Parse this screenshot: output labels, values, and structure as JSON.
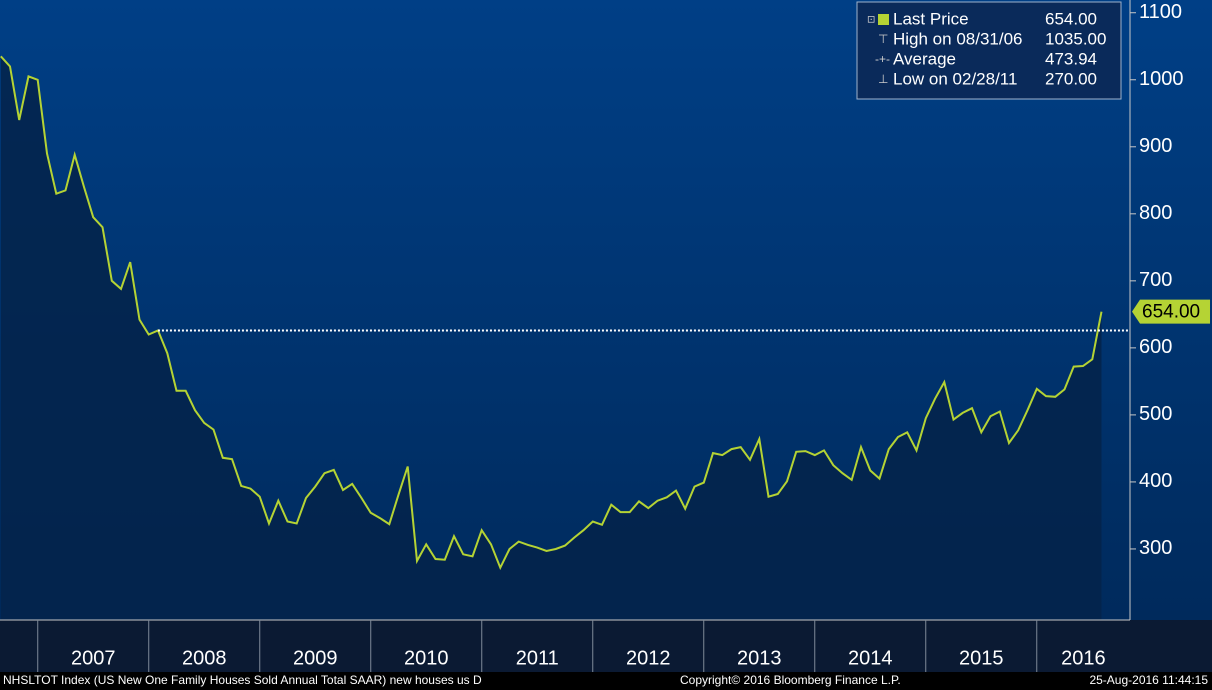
{
  "chart_data": {
    "type": "line",
    "x": [
      2006.667,
      2006.75,
      2006.833,
      2006.917,
      2007,
      2007.083,
      2007.167,
      2007.25,
      2007.333,
      2007.417,
      2007.5,
      2007.583,
      2007.667,
      2007.75,
      2007.833,
      2007.917,
      2008,
      2008.083,
      2008.167,
      2008.25,
      2008.333,
      2008.417,
      2008.5,
      2008.583,
      2008.667,
      2008.75,
      2008.833,
      2008.917,
      2009,
      2009.083,
      2009.167,
      2009.25,
      2009.333,
      2009.417,
      2009.5,
      2009.583,
      2009.667,
      2009.75,
      2009.833,
      2009.917,
      2010,
      2010.083,
      2010.167,
      2010.25,
      2010.333,
      2010.417,
      2010.5,
      2010.583,
      2010.667,
      2010.75,
      2010.833,
      2010.917,
      2011,
      2011.083,
      2011.167,
      2011.25,
      2011.333,
      2011.417,
      2011.5,
      2011.583,
      2011.667,
      2011.75,
      2011.833,
      2011.917,
      2012,
      2012.083,
      2012.167,
      2012.25,
      2012.333,
      2012.417,
      2012.5,
      2012.583,
      2012.667,
      2012.75,
      2012.833,
      2012.917,
      2013,
      2013.083,
      2013.167,
      2013.25,
      2013.333,
      2013.417,
      2013.5,
      2013.583,
      2013.667,
      2013.75,
      2013.833,
      2013.917,
      2014,
      2014.083,
      2014.167,
      2014.25,
      2014.333,
      2014.417,
      2014.5,
      2014.583,
      2014.667,
      2014.75,
      2014.833,
      2014.917,
      2015,
      2015.083,
      2015.167,
      2015.25,
      2015.333,
      2015.417,
      2015.5,
      2015.583,
      2015.667,
      2015.75,
      2015.833,
      2015.917,
      2016,
      2016.083,
      2016.167,
      2016.25,
      2016.333,
      2016.417,
      2016.5,
      2016.583
    ],
    "series": [
      {
        "name": "Last Price",
        "color": "#b5d334",
        "values": [
          1035,
          1020,
          940,
          1005,
          1000,
          890,
          830,
          835,
          888,
          840,
          795,
          780,
          700,
          688,
          728,
          642,
          620,
          626,
          592,
          536,
          536,
          507,
          488,
          478,
          436,
          434,
          394,
          390,
          378,
          338,
          372,
          341,
          338,
          376,
          393,
          413,
          418,
          388,
          397,
          376,
          354,
          346,
          337,
          381,
          423,
          282,
          307,
          285,
          284,
          319,
          292,
          289,
          328,
          307,
          272,
          300,
          311,
          306,
          302,
          297,
          300,
          305,
          317,
          328,
          341,
          336,
          366,
          355,
          355,
          371,
          361,
          372,
          377,
          387,
          360,
          393,
          399,
          443,
          440,
          449,
          452,
          433,
          464,
          378,
          382,
          401,
          445,
          446,
          440,
          447,
          425,
          413,
          403,
          452,
          417,
          405,
          449,
          467,
          474,
          447,
          495,
          524,
          549,
          493,
          503,
          510,
          474,
          498,
          505,
          458,
          477,
          507,
          539,
          528,
          527,
          538,
          572,
          573,
          583,
          654
        ]
      }
    ],
    "last_label": "654.00",
    "hline": 626,
    "legend": [
      {
        "name": "Last Price",
        "value": "654.00"
      },
      {
        "name": "High on 08/31/06",
        "value": "1035.00"
      },
      {
        "name": "Average",
        "value": "473.94"
      },
      {
        "name": "Low on 02/28/11",
        "value": "270.00"
      }
    ],
    "xlim": [
      2006.66,
      2016.84
    ],
    "xticks": [
      2007,
      2008,
      2009,
      2010,
      2011,
      2012,
      2013,
      2014,
      2015,
      2016
    ],
    "ylim": [
      194,
      1119
    ],
    "yticks": [
      300,
      400,
      500,
      600,
      700,
      800,
      900,
      1000,
      1100
    ],
    "footer": {
      "left": "NHSLTOT Index (US New One Family Houses Sold Annual Total SAAR) new houses us  D",
      "center": "Copyright© 2016 Bloomberg Finance L.P.",
      "right": "25-Aug-2016 11:44:15"
    }
  }
}
